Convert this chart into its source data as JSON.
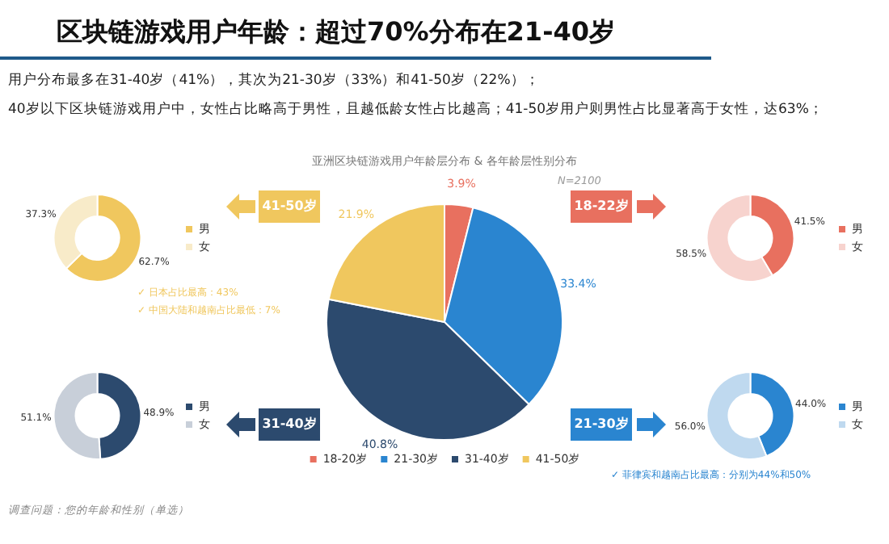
{
  "chart_data": [
    {
      "type": "pie",
      "title": "区块链游戏用户年龄：超过70%分布在21-40岁",
      "subtitle": "亚洲区块链游戏用户年龄层分布 & 各年龄层性别分布",
      "categories": [
        "18-20岁",
        "21-30岁",
        "31-40岁",
        "41-50岁"
      ],
      "values": [
        3.9,
        33.4,
        40.8,
        21.9
      ],
      "colors": [
        "#e8705f",
        "#2a85d0",
        "#2c4a6e",
        "#f0c75e"
      ],
      "value_labels": [
        "3.9%",
        "33.4%",
        "40.8%",
        "21.9%"
      ],
      "legend": "bottom",
      "annotations": [
        "用户分布最多在31-40岁（41%），其次为21-30岁（33%）和41-50岁（22%）；",
        "40岁以下区块链游戏用户中，女性占比略高于男性，且越低龄女性占比越高；41-50岁用户则男性占比显著高于女性，达63%；",
        "N=2100",
        "调查问题：您的年龄和性别（单选）"
      ]
    },
    {
      "type": "donut",
      "title": "41-50岁",
      "categories": [
        "男",
        "女"
      ],
      "values": [
        62.7,
        37.3
      ],
      "colors": [
        "#f0c75e",
        "#f8ebc9"
      ],
      "value_labels": [
        "62.7%",
        "37.3%"
      ],
      "legend": "right",
      "annotations": [
        "✓ 日本占比最高：43%",
        "✓ 中国大陆和越南占比最低：7%"
      ]
    },
    {
      "type": "donut",
      "title": "18-22岁",
      "categories": [
        "男",
        "女"
      ],
      "values": [
        41.5,
        58.5
      ],
      "colors": [
        "#e8705f",
        "#f7d3ce"
      ],
      "value_labels": [
        "41.5%",
        "58.5%"
      ],
      "legend": "right"
    },
    {
      "type": "donut",
      "title": "31-40岁",
      "categories": [
        "男",
        "女"
      ],
      "values": [
        48.9,
        51.1
      ],
      "colors": [
        "#2c4a6e",
        "#c8cfd9"
      ],
      "value_labels": [
        "48.9%",
        "51.1%"
      ],
      "legend": "right"
    },
    {
      "type": "donut",
      "title": "21-30岁",
      "categories": [
        "男",
        "女"
      ],
      "values": [
        44.0,
        56.0
      ],
      "colors": [
        "#2a85d0",
        "#bfd9ef"
      ],
      "value_labels": [
        "44.0%",
        "56.0%"
      ],
      "legend": "right",
      "annotations": [
        "✓ 菲律宾和越南占比最高：分别为44%和50%"
      ]
    }
  ]
}
